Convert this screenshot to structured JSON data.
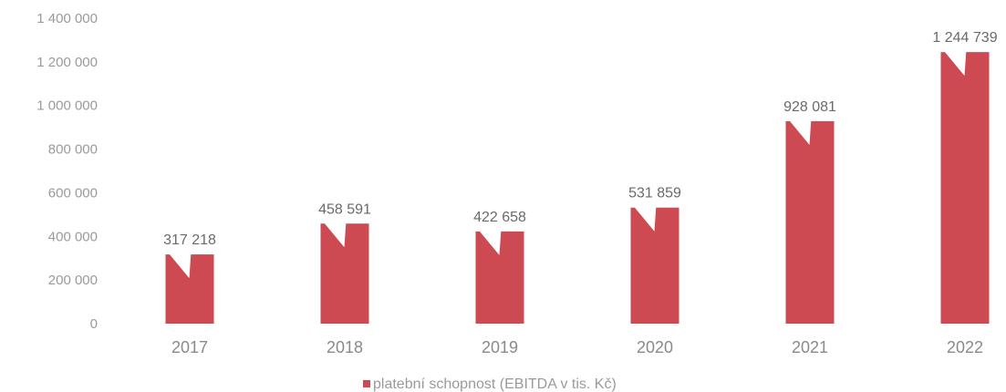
{
  "chart_data": {
    "type": "bar",
    "categories": [
      "2017",
      "2018",
      "2019",
      "2020",
      "2021",
      "2022"
    ],
    "series": [
      {
        "name": "platební schopnost (EBITDA v tis. Kč)",
        "values": [
          317218,
          458591,
          422658,
          531859,
          928081,
          1244739
        ],
        "color": "#cd4a52"
      }
    ],
    "data_labels": [
      "317 218",
      "458 591",
      "422 658",
      "531 859",
      "928 081",
      "1 244 739"
    ],
    "y_tick_labels": [
      "0",
      "200 000",
      "400 000",
      "600 000",
      "800 000",
      "1 000 000",
      "1 200 000",
      "1 400 000"
    ],
    "y_ticks": [
      0,
      200000,
      400000,
      600000,
      800000,
      1000000,
      1200000,
      1400000
    ],
    "ylim": [
      0,
      1400000
    ],
    "title": "",
    "xlabel": "",
    "ylabel": "",
    "grid": false,
    "legend": {
      "position": "bottom-center",
      "label": "platební schopnost (EBITDA v tis. Kč)"
    }
  }
}
